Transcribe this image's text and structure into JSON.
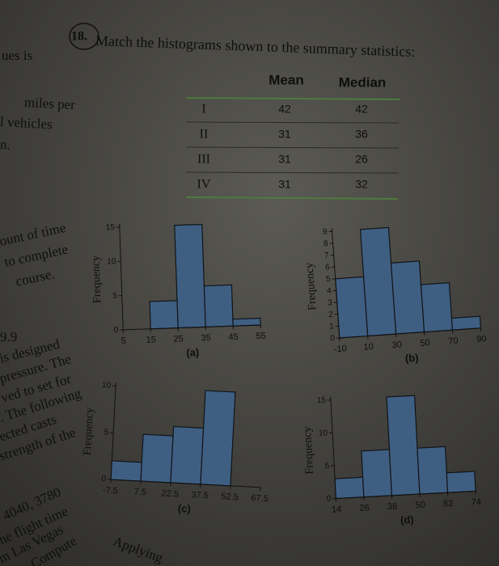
{
  "header": {
    "number": "18.",
    "question": "Match the histograms shown to the summary statistics:"
  },
  "table": {
    "columns": [
      "Mean",
      "Median"
    ],
    "rows": [
      [
        "I",
        "42",
        "42"
      ],
      [
        "II",
        "31",
        "36"
      ],
      [
        "III",
        "31",
        "26"
      ],
      [
        "IV",
        "31",
        "32"
      ]
    ]
  },
  "histograms": [
    {
      "label": "(a)",
      "y_label": "Frequency",
      "bins": [
        15,
        25,
        35,
        45,
        55
      ],
      "counts": [
        4,
        15,
        6,
        1
      ],
      "xlim": [
        5,
        55
      ],
      "ylim": [
        0,
        15
      ],
      "xticks": [
        5,
        15,
        25,
        35,
        45,
        55
      ],
      "yticks": [
        0,
        5,
        10,
        15
      ]
    },
    {
      "label": "(b)",
      "y_label": "Frequency",
      "bins": [
        -10,
        10,
        30,
        50,
        70,
        90
      ],
      "counts": [
        5,
        9,
        6,
        4,
        1
      ],
      "xlim": [
        -10,
        90
      ],
      "ylim": [
        0,
        9
      ],
      "xticks": [
        -10,
        10,
        30,
        50,
        70,
        90
      ],
      "yticks": [
        0,
        1,
        2,
        3,
        4,
        5,
        6,
        7,
        8,
        9
      ]
    },
    {
      "label": "(c)",
      "y_label": "Frequency",
      "bins": [
        -7.5,
        7.5,
        22.5,
        37.5,
        52.5
      ],
      "counts": [
        2,
        5,
        6,
        10
      ],
      "xlim": [
        -7.5,
        67.5
      ],
      "ylim": [
        0,
        10
      ],
      "xticks": [
        -7.5,
        7.5,
        22.5,
        37.5,
        52.5,
        67.5
      ],
      "yticks": [
        0,
        5,
        10
      ]
    },
    {
      "label": "(d)",
      "y_label": "Frequency",
      "bins": [
        14,
        26,
        38,
        50,
        62,
        74
      ],
      "counts": [
        3,
        7,
        15,
        7,
        3
      ],
      "xlim": [
        14,
        74
      ],
      "ylim": [
        0,
        15
      ],
      "xticks": [
        14,
        26,
        38,
        50,
        62,
        74
      ],
      "yticks": [
        0,
        5,
        10,
        15
      ]
    }
  ],
  "margin": [
    "ues is",
    "miles per",
    "l vehicles",
    "n.",
    "ount of time",
    "to complete",
    "course.",
    "9.9",
    "is designed",
    "pressure. The",
    "ved to set for",
    ". The following",
    "ected casts",
    "strength of the",
    "4040, 3780",
    "he flight time",
    "m Las Vegas",
    "Compute",
    "Applying"
  ]
}
